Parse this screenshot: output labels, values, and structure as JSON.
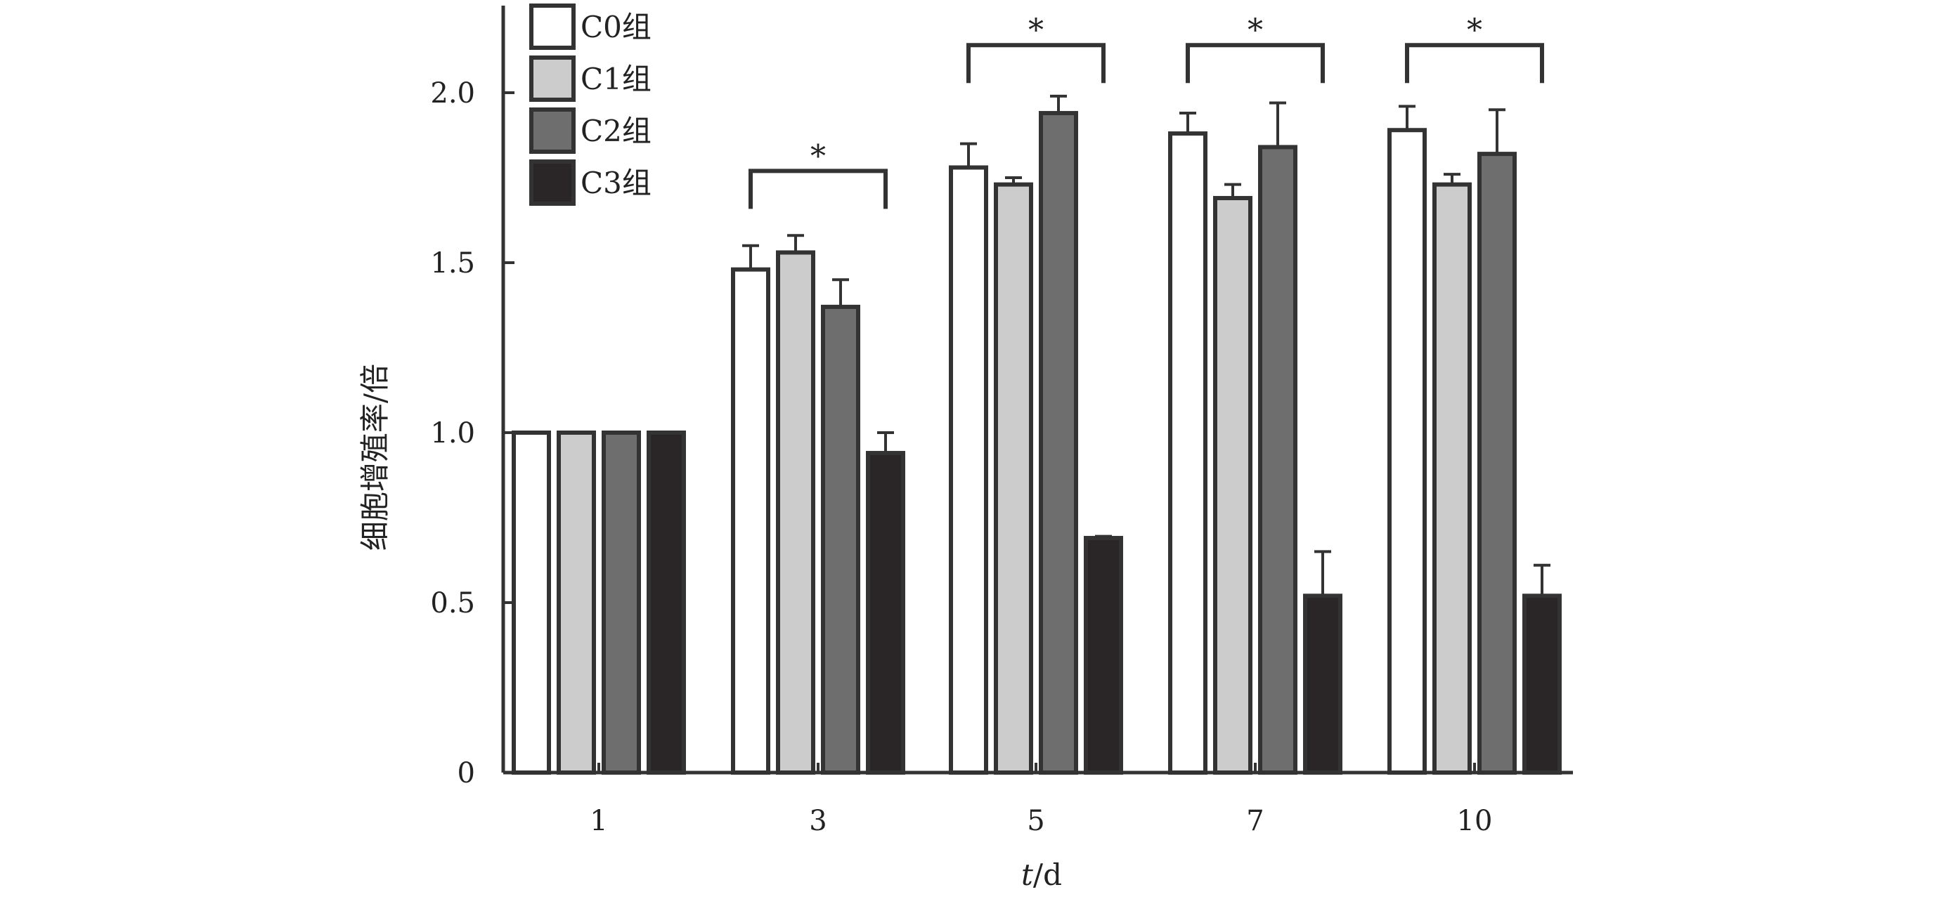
{
  "chart_data": {
    "type": "bar",
    "title": "",
    "xlabel_italic": "t",
    "xlabel_unit": "/d",
    "ylabel": "细胞增殖率/倍",
    "ylim": [
      0,
      2.2
    ],
    "yticks": [
      0,
      0.5,
      1.0,
      1.5,
      2.0
    ],
    "ytick_labels": [
      "0",
      "0.5",
      "1.0",
      "1.5",
      "2.0"
    ],
    "categories": [
      "1",
      "3",
      "5",
      "7",
      "10"
    ],
    "legend_position": "top-left",
    "grid": false,
    "series": [
      {
        "name": "C0组",
        "color": "#ffffff",
        "values": [
          1.0,
          1.48,
          1.78,
          1.88,
          1.89
        ],
        "errors": [
          0,
          0.07,
          0.07,
          0.06,
          0.07
        ]
      },
      {
        "name": "C1组",
        "color": "#cccccc",
        "values": [
          1.0,
          1.53,
          1.73,
          1.69,
          1.73
        ],
        "errors": [
          0,
          0.05,
          0.02,
          0.04,
          0.03
        ]
      },
      {
        "name": "C2组",
        "color": "#6e6e6e",
        "values": [
          1.0,
          1.37,
          1.94,
          1.84,
          1.82
        ],
        "errors": [
          0,
          0.08,
          0.05,
          0.13,
          0.13
        ]
      },
      {
        "name": "C3组",
        "color": "#2a2526",
        "values": [
          1.0,
          0.94,
          0.69,
          0.52,
          0.52
        ],
        "errors": [
          0,
          0.06,
          0.005,
          0.13,
          0.09
        ]
      }
    ],
    "significance": [
      {
        "category_index": 1,
        "label": "*",
        "bracket_level": 1.77
      },
      {
        "category_index": 2,
        "label": "*",
        "bracket_level": 2.14
      },
      {
        "category_index": 3,
        "label": "*",
        "bracket_level": 2.14
      },
      {
        "category_index": 4,
        "label": "*",
        "bracket_level": 2.14
      }
    ],
    "colors": {
      "axis": "#333333",
      "bar_outline": "#333333",
      "text": "#222222"
    }
  }
}
